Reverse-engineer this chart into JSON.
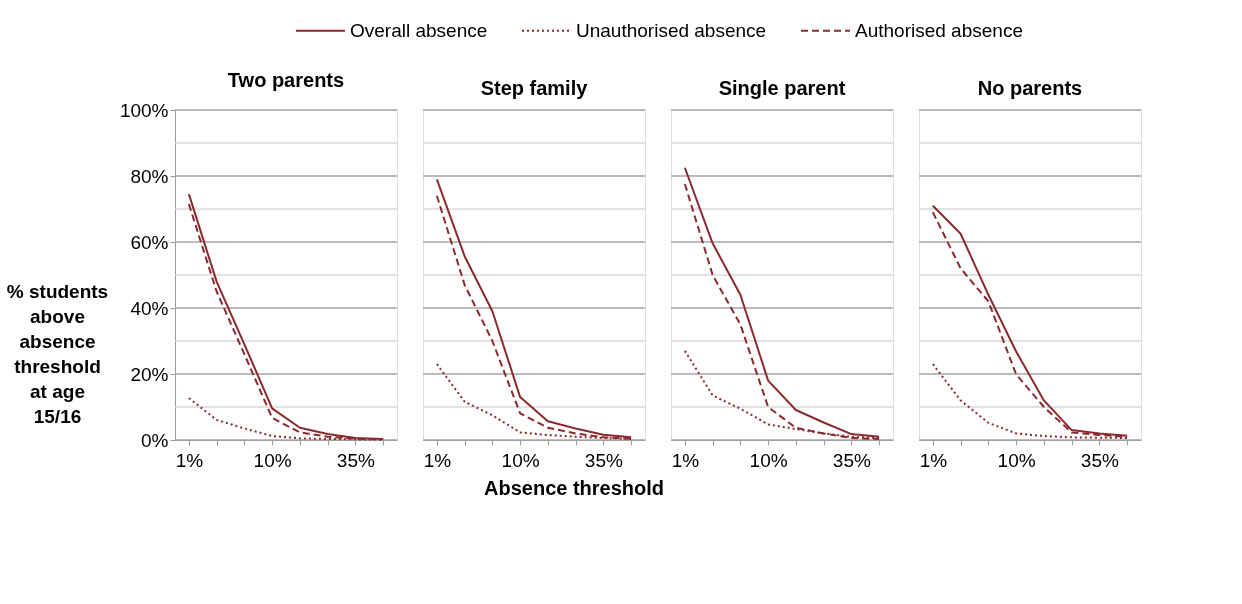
{
  "chart_data": [
    {
      "type": "line",
      "title": "Two parents",
      "ylabel": "% students above absence threshold at age 15/16",
      "xlabel": "Absence threshold",
      "legend": "top",
      "categories": [
        "1%",
        null,
        null,
        "10%",
        null,
        null,
        "35%",
        null
      ],
      "ylim": [
        0,
        100
      ],
      "yticks": [
        {
          "value": 0,
          "label": "0%"
        },
        {
          "value": 10,
          "label": null
        },
        {
          "value": 20,
          "label": "20%"
        },
        {
          "value": 30,
          "label": null
        },
        {
          "value": 40,
          "label": "40%"
        },
        {
          "value": 50,
          "label": null
        },
        {
          "value": 60,
          "label": "60%"
        },
        {
          "value": 70,
          "label": null
        },
        {
          "value": 80,
          "label": "80%"
        },
        {
          "value": 90,
          "label": null
        },
        {
          "value": 100,
          "label": "100%"
        }
      ],
      "grid": "y",
      "series": [
        {
          "name": "Overall absence",
          "color": "#8b2a2e",
          "line_style": "solid",
          "values": [
            74.5,
            48,
            29,
            9.6,
            3.7,
            1.8,
            0.6,
            0.3
          ]
        },
        {
          "name": "Unauthorised absence",
          "color": "#8b2a2e",
          "line_style": "dotted",
          "values": [
            12.7,
            6.1,
            3.5,
            1.2,
            0.5,
            0.3,
            0.2,
            0.1
          ]
        },
        {
          "name": "Authorised absence",
          "color": "#8b2a2e",
          "line_style": "dashed",
          "values": [
            71.5,
            45,
            26,
            6.7,
            2.3,
            1,
            0.4,
            0.2
          ]
        }
      ]
    },
    {
      "type": "line",
      "title": "Step family",
      "tick_labels": "x",
      "categories": [
        "1%",
        null,
        null,
        "10%",
        null,
        null,
        "35%",
        null
      ],
      "ylim": [
        0,
        100
      ],
      "yticks": [
        {
          "value": 0,
          "label": null
        },
        {
          "value": 10,
          "label": null
        },
        {
          "value": 20,
          "label": null
        },
        {
          "value": 30,
          "label": null
        },
        {
          "value": 40,
          "label": null
        },
        {
          "value": 50,
          "label": null
        },
        {
          "value": 60,
          "label": null
        },
        {
          "value": 70,
          "label": null
        },
        {
          "value": 80,
          "label": null
        },
        {
          "value": 90,
          "label": null
        },
        {
          "value": 100,
          "label": null
        }
      ],
      "grid": "y",
      "series": [
        {
          "color": "#8b2a2e",
          "line_style": "solid",
          "values": [
            79,
            55.7,
            39,
            13,
            5.7,
            3.5,
            1.6,
            0.8
          ]
        },
        {
          "color": "#8b2a2e",
          "line_style": "dotted",
          "values": [
            23,
            11.6,
            7.5,
            2.3,
            1.5,
            1.0,
            0.6,
            0.3
          ]
        },
        {
          "color": "#8b2a2e",
          "line_style": "dashed",
          "values": [
            74,
            47,
            30,
            8.1,
            3.7,
            2,
            0.8,
            0.4
          ]
        }
      ]
    },
    {
      "type": "line",
      "title": "Single parent",
      "tick_labels": "x",
      "categories": [
        "1%",
        null,
        null,
        "10%",
        null,
        null,
        "35%",
        null
      ],
      "ylim": [
        0,
        100
      ],
      "yticks": [
        {
          "value": 0,
          "label": null
        },
        {
          "value": 10,
          "label": null
        },
        {
          "value": 20,
          "label": null
        },
        {
          "value": 30,
          "label": null
        },
        {
          "value": 40,
          "label": null
        },
        {
          "value": 50,
          "label": null
        },
        {
          "value": 60,
          "label": null
        },
        {
          "value": 70,
          "label": null
        },
        {
          "value": 80,
          "label": null
        },
        {
          "value": 90,
          "label": null
        },
        {
          "value": 100,
          "label": null
        }
      ],
      "grid": "y",
      "series": [
        {
          "color": "#8b2a2e",
          "line_style": "solid",
          "values": [
            82.5,
            59.6,
            44,
            18,
            9.1,
            5.3,
            1.8,
            1
          ]
        },
        {
          "color": "#8b2a2e",
          "line_style": "dotted",
          "values": [
            27,
            13.5,
            9.5,
            4.7,
            3.3,
            2,
            1,
            0.6
          ]
        },
        {
          "color": "#8b2a2e",
          "line_style": "dashed",
          "values": [
            77.6,
            50,
            35,
            10,
            3.7,
            2,
            0.6,
            0.3
          ]
        }
      ]
    },
    {
      "type": "line",
      "title": "No parents",
      "tick_labels": "x",
      "categories": [
        "1%",
        null,
        null,
        "10%",
        null,
        null,
        "35%",
        null
      ],
      "ylim": [
        0,
        100
      ],
      "yticks": [
        {
          "value": 0,
          "label": null
        },
        {
          "value": 10,
          "label": null
        },
        {
          "value": 20,
          "label": null
        },
        {
          "value": 30,
          "label": null
        },
        {
          "value": 40,
          "label": null
        },
        {
          "value": 50,
          "label": null
        },
        {
          "value": 60,
          "label": null
        },
        {
          "value": 70,
          "label": null
        },
        {
          "value": 80,
          "label": null
        },
        {
          "value": 90,
          "label": null
        },
        {
          "value": 100,
          "label": null
        }
      ],
      "grid": "y",
      "series": [
        {
          "color": "#8b2a2e",
          "line_style": "solid",
          "values": [
            71,
            62.5,
            44,
            26.8,
            12,
            3,
            2,
            1.3
          ]
        },
        {
          "color": "#8b2a2e",
          "line_style": "dotted",
          "values": [
            23,
            12,
            5.2,
            2,
            1.2,
            0.8,
            0.7,
            0.6
          ]
        },
        {
          "color": "#8b2a2e",
          "line_style": "dashed",
          "values": [
            69,
            52,
            42,
            19.9,
            10,
            2.3,
            1.5,
            1
          ]
        }
      ]
    }
  ]
}
